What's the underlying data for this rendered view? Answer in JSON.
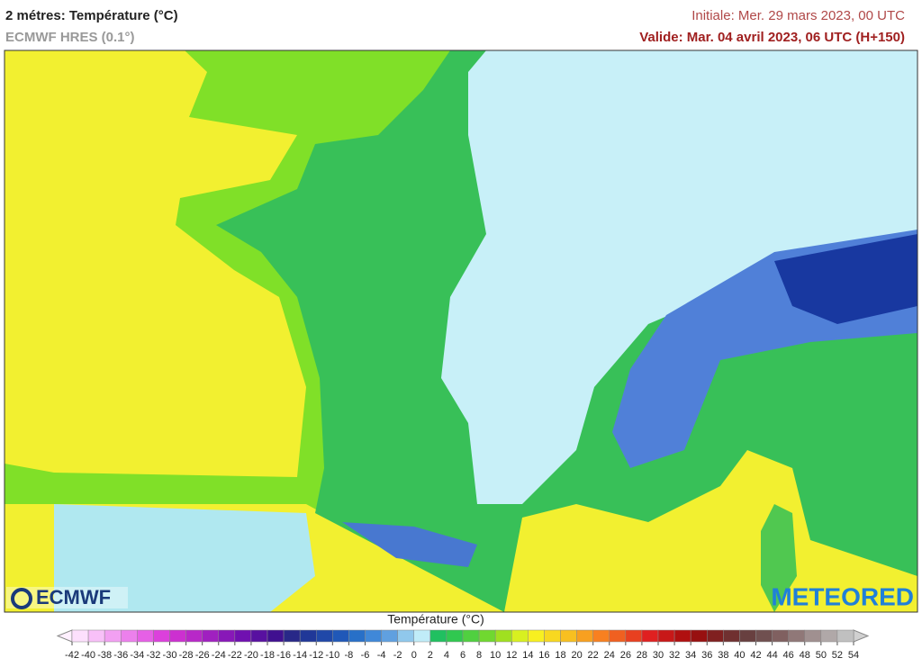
{
  "header": {
    "title": "2 métres: Température (°C)",
    "model": "ECMWF HRES (0.1°)",
    "initial": "Initiale: Mer. 29 mars 2023, 00 UTC",
    "valid": "Valide: Mar. 04 avril 2023, 06 UTC (H+150)"
  },
  "logos": {
    "left": "ECMWF",
    "right": "METEORED"
  },
  "legend": {
    "title": "Température (°C)",
    "ticks": [
      -42,
      -40,
      -38,
      -36,
      -34,
      -32,
      -30,
      -28,
      -26,
      -24,
      -22,
      -20,
      -18,
      -16,
      -14,
      -12,
      -10,
      -8,
      -6,
      -4,
      -2,
      0,
      2,
      4,
      6,
      8,
      10,
      12,
      14,
      16,
      18,
      20,
      22,
      24,
      26,
      28,
      30,
      32,
      34,
      36,
      38,
      40,
      42,
      44,
      46,
      48,
      50,
      52,
      54
    ],
    "colors": [
      "#fde0fd",
      "#f8c0f8",
      "#f2a0f2",
      "#ec80ec",
      "#e660e6",
      "#dc40dc",
      "#cc30d0",
      "#b828c8",
      "#a020c0",
      "#8818b8",
      "#7010b0",
      "#5810a0",
      "#401090",
      "#282888",
      "#203898",
      "#2048a8",
      "#2058b8",
      "#2870c8",
      "#4088d8",
      "#60a0e0",
      "#90c8ec",
      "#c0ecf8",
      "#20c060",
      "#30c850",
      "#50d040",
      "#70d830",
      "#a0e020",
      "#d8f020",
      "#f8f020",
      "#f8d820",
      "#f8c020",
      "#f8a020",
      "#f88020",
      "#f06020",
      "#e84020",
      "#e02020",
      "#c81818",
      "#b01010",
      "#981010",
      "#802020",
      "#703030",
      "#684040",
      "#705050",
      "#806060",
      "#907878",
      "#a09090",
      "#b0a8a8",
      "#c0c0c0"
    ],
    "under_color": "#fff0ff",
    "over_color": "#d0d0d0"
  }
}
